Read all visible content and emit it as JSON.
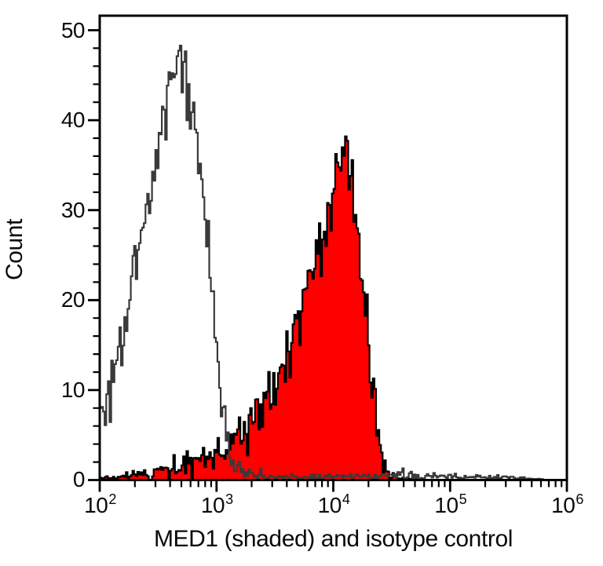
{
  "figure": {
    "x_title": "MED1 (shaded) and isotype control",
    "y_title": "Count",
    "background_color": "#ffffff",
    "frame_color": "#000000"
  },
  "chart_data": {
    "type": "area",
    "subtype": "flow-cytometry-overlay-histogram",
    "x_scale": "log10",
    "x_range": [
      100,
      1000000
    ],
    "y_range": [
      0,
      50
    ],
    "xlabel": "MED1 (shaded) and isotype control",
    "ylabel": "Count",
    "grid": "off",
    "legend": "none (identified in x-axis label)",
    "x_axis": {
      "base": "10",
      "exponents": [
        "2",
        "3",
        "4",
        "5",
        "6"
      ],
      "minor_ticks": "log sub-decades 2-9"
    },
    "y_axis": {
      "ticks": [
        0,
        10,
        20,
        30,
        40,
        50
      ],
      "tick_labels": [
        "0",
        "10",
        "20",
        "30",
        "40",
        "50"
      ],
      "minor_tick_step": 2
    },
    "bin_width_log10": 0.014,
    "noise_seed": 11,
    "noise_scale": 1.4,
    "series": [
      {
        "name": "isotype control",
        "style": "open",
        "line_color": "#3a3a3a",
        "fill": "none",
        "peak": {
          "x": 500,
          "count": 49
        },
        "envelope_log10x": [
          2.0,
          2.05,
          2.1,
          2.15,
          2.2,
          2.25,
          2.3,
          2.35,
          2.4,
          2.45,
          2.5,
          2.55,
          2.6,
          2.65,
          2.7,
          2.75,
          2.8,
          2.85,
          2.9,
          2.95,
          3.0,
          3.05,
          3.1,
          3.15,
          3.2,
          3.3,
          3.5,
          4.0,
          4.4,
          4.6,
          4.8,
          5.0,
          5.2,
          5.4,
          5.6,
          5.75,
          5.85,
          6.0
        ],
        "envelope_counts": [
          6,
          8,
          10,
          13,
          16,
          19,
          23,
          27,
          31,
          34,
          37,
          41,
          44,
          46,
          46,
          44,
          41,
          37,
          31,
          24,
          16,
          9,
          4,
          1.5,
          0.8,
          0.5,
          0.4,
          0.4,
          0.4,
          0.5,
          0.4,
          0.4,
          0.3,
          0.3,
          0.2,
          0.1,
          0,
          0
        ]
      },
      {
        "name": "MED1",
        "style": "shaded",
        "line_color": "#000000",
        "fill": "#fe0000",
        "peak": {
          "x": 11500,
          "count": 40
        },
        "envelope_log10x": [
          2.0,
          2.1,
          2.2,
          2.3,
          2.4,
          2.5,
          2.6,
          2.7,
          2.8,
          2.9,
          3.0,
          3.1,
          3.2,
          3.3,
          3.4,
          3.5,
          3.6,
          3.7,
          3.8,
          3.9,
          3.95,
          4.0,
          4.05,
          4.1,
          4.15,
          4.2,
          4.25,
          4.3,
          4.35,
          4.4,
          4.45,
          4.5,
          4.55,
          4.65,
          4.75,
          6.0
        ],
        "envelope_counts": [
          0.2,
          0.3,
          0.4,
          0.6,
          0.8,
          1.0,
          1.2,
          1.5,
          1.8,
          2.2,
          2.8,
          3.5,
          4.5,
          6,
          8,
          10.5,
          13.5,
          17,
          21,
          26,
          29,
          32,
          34.5,
          35,
          33,
          29,
          23,
          16,
          9,
          4,
          1.5,
          0.6,
          0.3,
          0.1,
          0,
          0
        ]
      }
    ]
  }
}
